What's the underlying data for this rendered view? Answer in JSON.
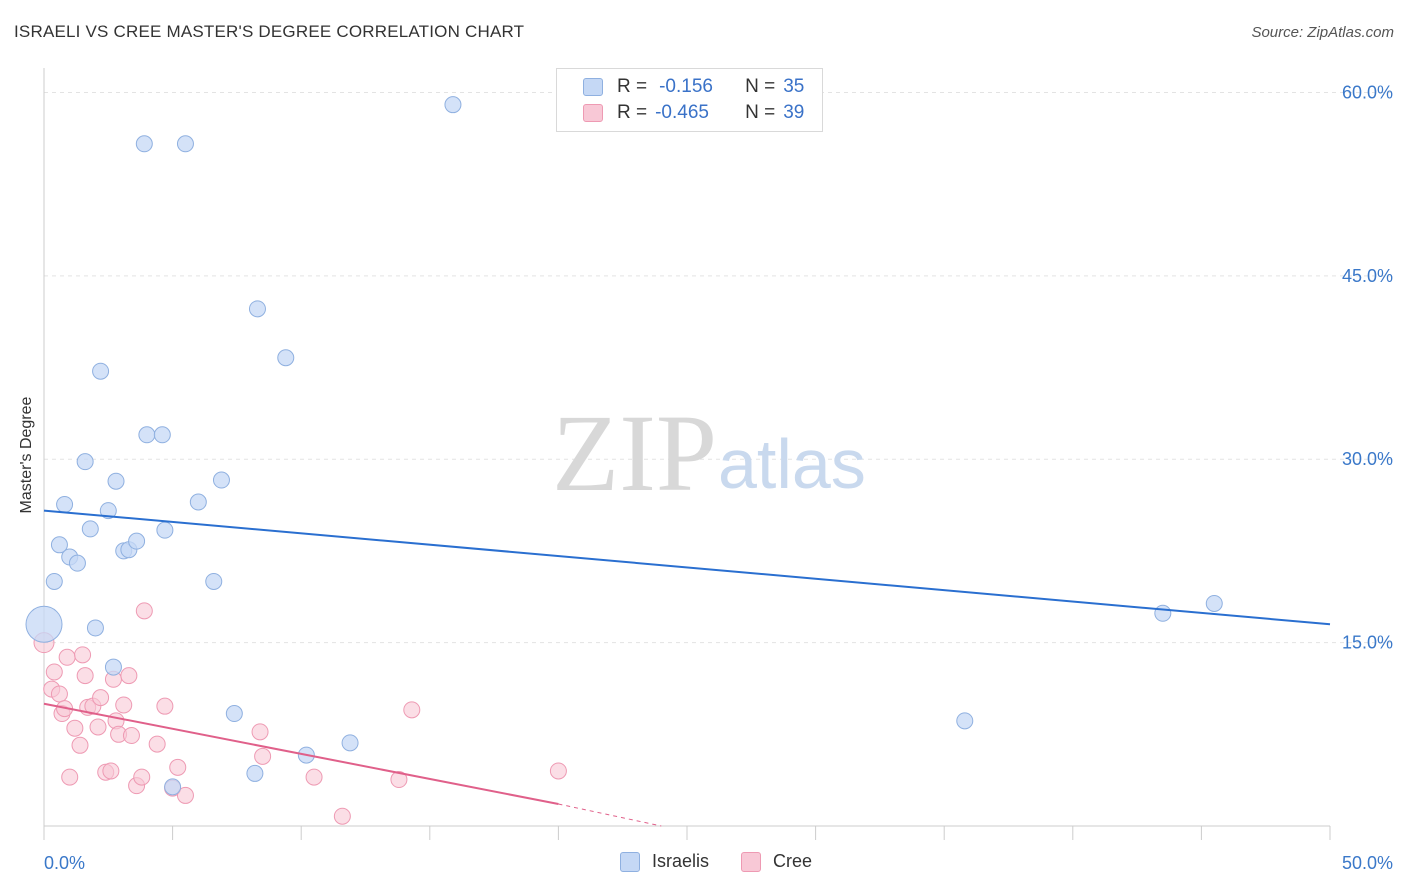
{
  "header": {
    "title": "ISRAELI VS CREE MASTER'S DEGREE CORRELATION CHART",
    "source": "Source: ZipAtlas.com"
  },
  "watermark": {
    "part1": "ZIP",
    "part2": "atlas"
  },
  "legend": {
    "rows": [
      {
        "r_label": "R =",
        "r_value": "-0.156",
        "n_label": "N =",
        "n_value": "35"
      },
      {
        "r_label": "R =",
        "r_value": "-0.465",
        "n_label": "N =",
        "n_value": "39"
      }
    ]
  },
  "bottom_legend": {
    "series1": "Israelis",
    "series2": "Cree"
  },
  "chart_data": {
    "type": "scatter",
    "title": "ISRAELI VS CREE MASTER'S DEGREE CORRELATION CHART",
    "xlabel": "",
    "ylabel": "Master's Degree",
    "xlim": [
      0,
      50
    ],
    "ylim": [
      0,
      62
    ],
    "x_tick_labels": [
      "0.0%",
      "50.0%"
    ],
    "y_ticks": [
      15,
      30,
      45,
      60
    ],
    "y_tick_labels": [
      "15.0%",
      "30.0%",
      "45.0%",
      "60.0%"
    ],
    "colors": {
      "israelis_fill": "#c5d8f5",
      "israelis_stroke": "#8fb0e0",
      "israelis_line": "#2a6fd0",
      "cree_fill": "#f8c8d6",
      "cree_stroke": "#ee9ab3",
      "cree_line": "#e0608a"
    },
    "series": [
      {
        "name": "Israelis",
        "points": [
          [
            0.0,
            16.5
          ],
          [
            0.4,
            20.0
          ],
          [
            0.6,
            23.0
          ],
          [
            0.8,
            26.3
          ],
          [
            1.0,
            22.0
          ],
          [
            1.3,
            21.5
          ],
          [
            1.6,
            29.8
          ],
          [
            1.8,
            24.3
          ],
          [
            2.0,
            16.2
          ],
          [
            2.2,
            37.2
          ],
          [
            2.5,
            25.8
          ],
          [
            2.7,
            13.0
          ],
          [
            2.8,
            28.2
          ],
          [
            3.1,
            22.5
          ],
          [
            3.3,
            22.6
          ],
          [
            3.6,
            23.3
          ],
          [
            3.9,
            55.8
          ],
          [
            4.0,
            32.0
          ],
          [
            4.6,
            32.0
          ],
          [
            4.7,
            24.2
          ],
          [
            5.5,
            55.8
          ],
          [
            6.0,
            26.5
          ],
          [
            6.6,
            20.0
          ],
          [
            6.9,
            28.3
          ],
          [
            7.4,
            9.2
          ],
          [
            8.2,
            4.3
          ],
          [
            8.3,
            42.3
          ],
          [
            9.4,
            38.3
          ],
          [
            10.2,
            5.8
          ],
          [
            11.9,
            6.8
          ],
          [
            15.9,
            59.0
          ],
          [
            5.0,
            3.2
          ],
          [
            35.8,
            8.6
          ],
          [
            43.5,
            17.4
          ],
          [
            45.5,
            18.2
          ]
        ]
      },
      {
        "name": "Cree",
        "points": [
          [
            0.0,
            15.0
          ],
          [
            0.3,
            11.2
          ],
          [
            0.4,
            12.6
          ],
          [
            0.6,
            10.8
          ],
          [
            0.7,
            9.2
          ],
          [
            0.8,
            9.6
          ],
          [
            0.9,
            13.8
          ],
          [
            1.0,
            4.0
          ],
          [
            1.2,
            8.0
          ],
          [
            1.4,
            6.6
          ],
          [
            1.5,
            14.0
          ],
          [
            1.6,
            12.3
          ],
          [
            1.7,
            9.7
          ],
          [
            1.9,
            9.8
          ],
          [
            2.1,
            8.1
          ],
          [
            2.2,
            10.5
          ],
          [
            2.4,
            4.4
          ],
          [
            2.6,
            4.5
          ],
          [
            2.7,
            12.0
          ],
          [
            2.8,
            8.6
          ],
          [
            2.9,
            7.5
          ],
          [
            3.1,
            9.9
          ],
          [
            3.3,
            12.3
          ],
          [
            3.4,
            7.4
          ],
          [
            3.6,
            3.3
          ],
          [
            3.8,
            4.0
          ],
          [
            3.9,
            17.6
          ],
          [
            4.4,
            6.7
          ],
          [
            4.7,
            9.8
          ],
          [
            5.0,
            3.1
          ],
          [
            5.2,
            4.8
          ],
          [
            5.5,
            2.5
          ],
          [
            8.4,
            7.7
          ],
          [
            8.5,
            5.7
          ],
          [
            10.5,
            4.0
          ],
          [
            11.6,
            0.8
          ],
          [
            13.8,
            3.8
          ],
          [
            14.3,
            9.5
          ],
          [
            20.0,
            4.5
          ]
        ]
      }
    ],
    "trendlines": [
      {
        "series": "Israelis",
        "x": [
          0,
          50
        ],
        "y": [
          25.8,
          16.5
        ]
      },
      {
        "series": "Cree",
        "x": [
          0,
          20
        ],
        "y": [
          10.0,
          1.8
        ],
        "dashed_extension": {
          "x": [
            20,
            24
          ],
          "y": [
            1.8,
            0.0
          ]
        }
      }
    ]
  }
}
